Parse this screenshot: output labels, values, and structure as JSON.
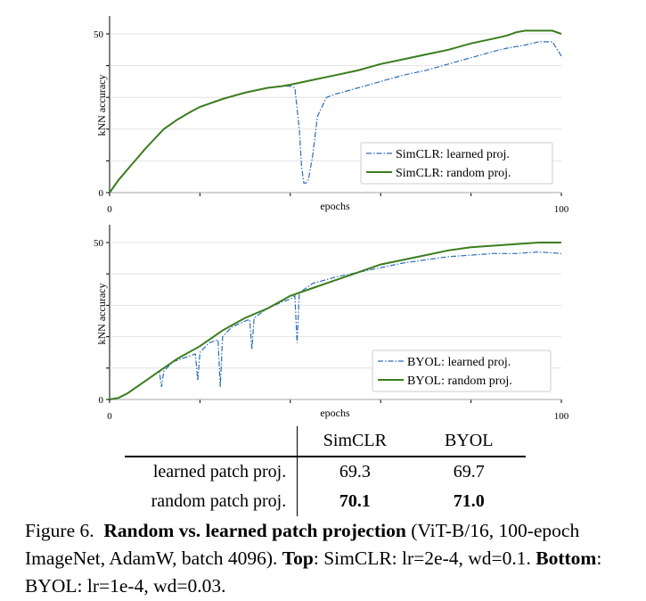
{
  "charts": [
    {
      "ylabel": "kNN accuracy",
      "xlabel": "epochs",
      "yticks": [
        "0",
        "50"
      ],
      "xticks": [
        "0",
        "100"
      ],
      "legend": [
        "SimCLR: learned proj.",
        "SimCLR: random proj."
      ]
    },
    {
      "ylabel": "kNN accuracy",
      "xlabel": "epochs",
      "yticks": [
        "0",
        "50"
      ],
      "xticks": [
        "0",
        "100"
      ],
      "legend": [
        "BYOL: learned proj.",
        "BYOL: random proj."
      ]
    }
  ],
  "chart_data": [
    {
      "type": "line",
      "xlabel": "epochs",
      "ylabel": "kNN accuracy",
      "xlim": [
        0,
        100
      ],
      "ylim": [
        0,
        50
      ],
      "legend_position": "bottom-right",
      "series": [
        {
          "name": "SimCLR: learned proj.",
          "style": "dash-dot",
          "color": "#2a6db8",
          "x": [
            0,
            2,
            5,
            8,
            10,
            12,
            15,
            18,
            20,
            25,
            30,
            35,
            38,
            40,
            41,
            42,
            42.5,
            43,
            43.5,
            44,
            45,
            46,
            48,
            50,
            55,
            60,
            65,
            70,
            75,
            80,
            85,
            88,
            90,
            92,
            95,
            98,
            100
          ],
          "y": [
            0,
            4,
            9,
            14,
            17,
            20,
            23,
            25.5,
            27,
            29.5,
            31.5,
            33,
            33.5,
            33.5,
            33,
            20,
            8,
            3,
            3,
            4,
            12,
            24,
            30,
            31,
            33,
            35,
            37,
            38.5,
            40.5,
            42.5,
            44.5,
            45.5,
            46,
            46.5,
            47.5,
            47.5,
            43
          ]
        },
        {
          "name": "SimCLR: random proj.",
          "style": "solid",
          "color": "#3a7d1e",
          "x": [
            0,
            2,
            5,
            8,
            10,
            12,
            15,
            18,
            20,
            25,
            30,
            35,
            38,
            40,
            45,
            50,
            55,
            60,
            65,
            70,
            75,
            80,
            85,
            88,
            90,
            92,
            95,
            98,
            100
          ],
          "y": [
            0,
            4,
            9,
            14,
            17,
            20,
            23,
            25.5,
            27,
            29.5,
            31.5,
            33,
            33.5,
            34,
            35.5,
            37,
            38.5,
            40.5,
            42,
            43.5,
            45,
            47,
            48.5,
            49.5,
            50.5,
            51,
            51,
            51,
            50
          ]
        }
      ]
    },
    {
      "type": "line",
      "xlabel": "epochs",
      "ylabel": "kNN accuracy",
      "xlim": [
        0,
        100
      ],
      "ylim": [
        0,
        50
      ],
      "legend_position": "bottom-right",
      "series": [
        {
          "name": "BYOL: learned proj.",
          "style": "dash-dot",
          "color": "#2a6db8",
          "x": [
            0,
            2,
            4,
            6,
            8,
            10,
            11,
            11.5,
            12,
            14,
            16,
            18,
            19,
            19.5,
            20,
            22,
            24,
            24.5,
            25,
            27,
            30,
            31,
            31.5,
            32,
            35,
            38,
            40,
            41,
            41.5,
            42,
            45,
            50,
            55,
            60,
            65,
            70,
            75,
            80,
            85,
            90,
            95,
            100
          ],
          "y": [
            0,
            0.5,
            2,
            4,
            6,
            8,
            9,
            4,
            9,
            12,
            13,
            14,
            14.5,
            6,
            15,
            18,
            19,
            4,
            20,
            23,
            25,
            25.5,
            16,
            26,
            29,
            31,
            32,
            33,
            18,
            34,
            37,
            39,
            40.5,
            42,
            43.5,
            44.5,
            45.5,
            46,
            46.5,
            46.5,
            47,
            46.5
          ]
        },
        {
          "name": "BYOL: random proj.",
          "style": "solid",
          "color": "#3a7d1e",
          "x": [
            0,
            2,
            4,
            6,
            8,
            10,
            12,
            15,
            20,
            25,
            30,
            35,
            40,
            45,
            50,
            55,
            60,
            65,
            70,
            75,
            80,
            85,
            90,
            95,
            100
          ],
          "y": [
            0,
            0.5,
            2,
            4,
            6,
            8,
            10,
            13,
            17,
            22,
            26,
            29,
            33,
            35.5,
            38,
            40.5,
            43,
            44.5,
            46,
            47.5,
            48.5,
            49,
            49.5,
            50,
            50
          ]
        }
      ]
    }
  ],
  "table": {
    "header": [
      "SimCLR",
      "BYOL"
    ],
    "rows": [
      {
        "label": "learned patch proj.",
        "simclr": "69.3",
        "byol": "69.7"
      },
      {
        "label": "random patch proj.",
        "simclr": "70.1",
        "byol": "71.0"
      }
    ]
  },
  "caption": {
    "fig": "Figure 6.",
    "title": "Random vs. learned patch projection",
    "detail": "(ViT-B/16, 100-epoch ImageNet, AdamW, batch 4096).",
    "top_label": "Top",
    "top_text": ": SimCLR: lr=2e-4, wd=0.1.",
    "bottom_label": "Bottom",
    "bottom_text": ": BYOL: lr=1e-4, wd=0.03."
  }
}
